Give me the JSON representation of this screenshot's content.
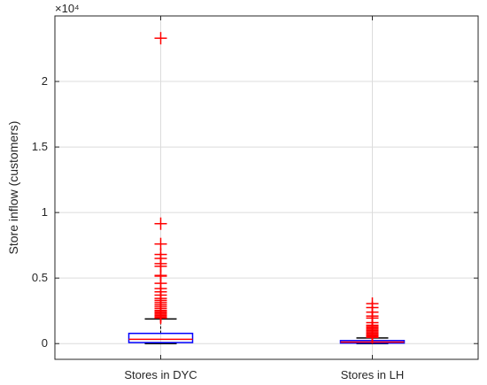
{
  "chart_data": {
    "type": "box",
    "title": "",
    "xlabel": "",
    "ylabel": "Store inflow (customers)",
    "exponent_label": "×10⁴",
    "categories": [
      "Stores in DYC",
      "Stores in LH"
    ],
    "yticks": [
      0,
      0.5,
      1,
      1.5,
      2
    ],
    "ylim": [
      -1200,
      25000
    ],
    "grid": true,
    "colors": {
      "box": "#0000ff",
      "median": "#ff0000",
      "whisker": "#000000",
      "outlier": "#ff0000",
      "grid": "#dcdcdc"
    },
    "series": [
      {
        "category": "Stores in DYC",
        "q1": 80,
        "median": 330,
        "q3": 780,
        "whisker_low": 0,
        "whisker_high": 1880,
        "outliers": [
          23300,
          9150,
          7600,
          6800,
          6500,
          6100,
          5900,
          5200,
          5150,
          4600,
          4200,
          3950,
          3700,
          3450,
          3300,
          3150,
          3000,
          2850,
          2700,
          2550,
          2450,
          2350,
          2250,
          2150,
          2050,
          1960
        ]
      },
      {
        "category": "Stores in LH",
        "q1": 40,
        "median": 120,
        "q3": 230,
        "whisker_low": 0,
        "whisker_high": 430,
        "outliers": [
          3050,
          2750,
          2400,
          2100,
          1950,
          1600,
          1400,
          1300,
          1200,
          1100,
          1000,
          900,
          800,
          700,
          650,
          600,
          550,
          500,
          470
        ]
      }
    ]
  }
}
